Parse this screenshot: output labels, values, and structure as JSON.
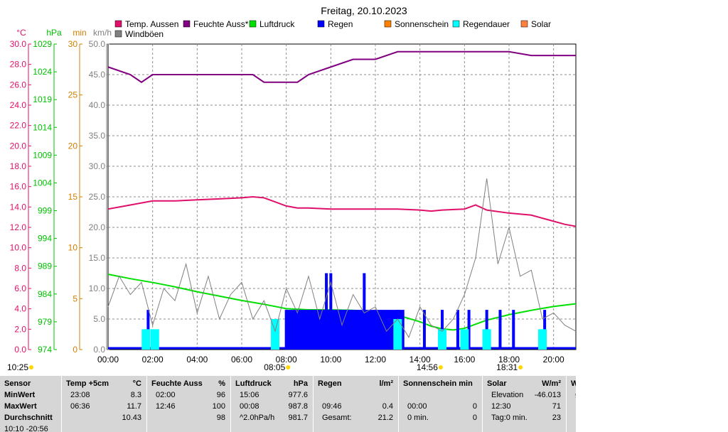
{
  "chart_data": {
    "type": "line",
    "title": "Freitag, 20.10.2023",
    "x_ticks": [
      "00:00",
      "02:00",
      "04:00",
      "06:00",
      "08:00",
      "10:00",
      "12:00",
      "14:00",
      "16:00",
      "18:00",
      "20:00"
    ],
    "x_range_hours": [
      0,
      21
    ],
    "events": {
      "now": "10:25",
      "sunrise": "08:05",
      "solar_noon": "14:56",
      "sunset": "18:31"
    },
    "axes": {
      "temp": {
        "unit": "°C",
        "range": [
          0,
          30
        ],
        "ticks": [
          "0.0",
          "2.0",
          "4.0",
          "6.0",
          "8.0",
          "10.0",
          "12.0",
          "14.0",
          "16.0",
          "18.0",
          "20.0",
          "22.0",
          "24.0",
          "26.0",
          "28.0",
          "30.0"
        ],
        "color": "#e0106a"
      },
      "press": {
        "unit": "hPa",
        "range": [
          974,
          1030
        ],
        "ticks": [
          "974",
          "979",
          "984",
          "989",
          "994",
          "999",
          "1004",
          "1009",
          "1014",
          "1019",
          "1024",
          "1029"
        ],
        "color": "#00c000"
      },
      "min": {
        "unit": "min",
        "range": [
          0,
          30
        ],
        "ticks": [
          "0",
          "5",
          "10",
          "15",
          "20",
          "25",
          "30"
        ],
        "color": "#d08000"
      },
      "kmh": {
        "unit": "km/h",
        "range": [
          0,
          50
        ],
        "ticks": [
          "0.0",
          "5.0",
          "10.0",
          "15.0",
          "20.0",
          "25.0",
          "30.0",
          "35.0",
          "40.0",
          "45.0",
          "50.0"
        ],
        "color": "#808080"
      }
    },
    "legend": [
      {
        "name": "Temp. Aussen",
        "color": "#e0106a"
      },
      {
        "name": "Feuchte Auss*",
        "color": "#800080"
      },
      {
        "name": "Luftdruck",
        "color": "#00e000"
      },
      {
        "name": "Regen",
        "color": "#0000ff"
      },
      {
        "name": "Sonnenschein",
        "color": "#ff8000"
      },
      {
        "name": "Regendauer",
        "color": "#00ffff"
      },
      {
        "name": "Solar",
        "color": "#ff8040"
      },
      {
        "name": "Windböen",
        "color": "#808080"
      }
    ],
    "series": [
      {
        "name": "Temp. Aussen",
        "axis": "temp",
        "color": "#e0106a",
        "x": [
          0,
          0.5,
          1,
          1.5,
          2,
          3,
          4,
          5,
          6,
          6.5,
          7,
          8,
          8.5,
          9,
          10,
          11,
          12,
          13,
          14,
          14.5,
          15,
          16,
          16.5,
          17,
          18,
          19,
          20,
          20.5,
          21
        ],
        "y": [
          13.8,
          14.0,
          14.2,
          14.4,
          14.6,
          14.6,
          14.7,
          14.8,
          14.9,
          15.0,
          14.9,
          14.1,
          13.9,
          13.9,
          13.8,
          13.8,
          13.8,
          13.8,
          13.7,
          13.6,
          13.7,
          13.8,
          14.2,
          13.7,
          13.4,
          13.2,
          12.6,
          12.3,
          12.1
        ]
      },
      {
        "name": "Feuchte Auss*",
        "axis": "percent",
        "color": "#800080",
        "range": [
          0,
          100
        ],
        "x": [
          0,
          1,
          1.5,
          2,
          3,
          4,
          6.5,
          7,
          8.5,
          9,
          10,
          11,
          12,
          13,
          14,
          15,
          16,
          17,
          18,
          19,
          20,
          21
        ],
        "y": [
          97,
          96,
          95,
          96,
          96,
          96,
          96,
          95,
          95,
          96,
          97,
          98,
          98,
          99,
          99,
          99,
          99,
          99,
          99,
          98.5,
          98.5,
          98.5
        ]
      },
      {
        "name": "Luftdruck",
        "axis": "press",
        "color": "#00e000",
        "x": [
          0,
          1,
          2,
          3,
          4,
          5,
          6,
          7,
          8,
          9,
          10,
          11,
          12,
          13,
          14,
          14.5,
          15,
          15.5,
          16,
          17,
          18,
          19,
          20,
          21
        ],
        "y": [
          987.8,
          987.0,
          986.3,
          985.5,
          984.6,
          983.8,
          983.0,
          982.3,
          981.5,
          981.3,
          981.3,
          981.2,
          981.0,
          980.3,
          979.1,
          978.3,
          977.8,
          977.6,
          977.9,
          979.4,
          980.4,
          981.2,
          981.9,
          982.4
        ]
      },
      {
        "name": "Regen",
        "axis": "kmh",
        "color": "#0000ff",
        "x": [
          1.8,
          8.0,
          9.8,
          10.0,
          11.5,
          13.0,
          14.2,
          15.0,
          15.7,
          16.2,
          17.0,
          17.6,
          18.2,
          19.6
        ],
        "y": [
          6.5,
          6.5,
          12.5,
          12.5,
          12.5,
          6.5,
          6.5,
          6.5,
          6.5,
          6.5,
          6.5,
          6.5,
          6.5,
          6.5
        ]
      },
      {
        "name": "Regendauer",
        "axis": "min",
        "color": "#00ffff",
        "x": [
          1.7,
          2.1,
          7.5,
          13.0,
          15.0,
          16.0,
          17.0,
          19.5
        ],
        "y": [
          2,
          2,
          3,
          3,
          2,
          2,
          2,
          2
        ]
      },
      {
        "name": "Windböen",
        "axis": "kmh",
        "color": "#808080",
        "x": [
          0,
          0.5,
          1,
          1.5,
          2,
          2.5,
          3,
          3.5,
          4,
          4.5,
          5,
          5.5,
          6,
          6.5,
          7,
          7.5,
          8,
          8.5,
          9,
          9.5,
          10,
          10.5,
          11,
          11.5,
          12,
          12.5,
          13,
          13.5,
          14,
          14.5,
          15,
          15.5,
          16,
          16.5,
          17,
          17.5,
          18,
          18.5,
          19,
          19.5,
          20,
          20.5,
          21
        ],
        "y": [
          7,
          12,
          9,
          11,
          4,
          10,
          8,
          14,
          6,
          12,
          5,
          9,
          11,
          5,
          8,
          3,
          10,
          6,
          12,
          5,
          11,
          4,
          9,
          6,
          7,
          3,
          5,
          2,
          7,
          4,
          3,
          5,
          9,
          15,
          28,
          14,
          20,
          12,
          13,
          5,
          6,
          4,
          3
        ]
      }
    ],
    "grid": true,
    "legend_position": "top"
  },
  "table": {
    "row_labels": [
      "Sensor",
      "MinWert",
      "MaxWert",
      "Durchschnitt"
    ],
    "footer_row": "10:10 -20:56",
    "groups": [
      {
        "title": "Temp +5cm",
        "unit": "°C",
        "rows": [
          [
            "23:08",
            "8.3"
          ],
          [
            "06:36",
            "11.7"
          ],
          [
            "",
            "10.43"
          ]
        ]
      },
      {
        "title": "Feuchte Auss",
        "unit": "%",
        "rows": [
          [
            "02:00",
            "96"
          ],
          [
            "12:46",
            "100"
          ],
          [
            "",
            "98"
          ]
        ]
      },
      {
        "title": "Luftdruck",
        "unit": "hPa",
        "rows": [
          [
            "15:06",
            "977.6"
          ],
          [
            "00:08",
            "987.8"
          ],
          [
            "^2.0hPa/h",
            "981.7"
          ]
        ]
      },
      {
        "title": "Regen",
        "unit": "l/m²",
        "rows": [
          [
            "",
            ""
          ],
          [
            "09:46",
            "0.4"
          ],
          [
            "Gesamt:",
            "21.2"
          ]
        ]
      },
      {
        "title": "Sonnenschein min",
        "unit": "",
        "rows": [
          [
            "",
            ""
          ],
          [
            "00:00",
            "0"
          ],
          [
            "0 min.",
            "0"
          ]
        ]
      },
      {
        "title": "Solar",
        "unit": "W/m²",
        "rows": [
          [
            "Elevation",
            "-46.013"
          ],
          [
            "12:30",
            "71"
          ],
          [
            "Tag:0 min.",
            "23"
          ]
        ]
      },
      {
        "title": "W",
        "unit": "",
        "rows": [
          [
            "Ø",
            ""
          ],
          [
            "",
            ""
          ],
          [
            "",
            ""
          ]
        ]
      }
    ]
  }
}
